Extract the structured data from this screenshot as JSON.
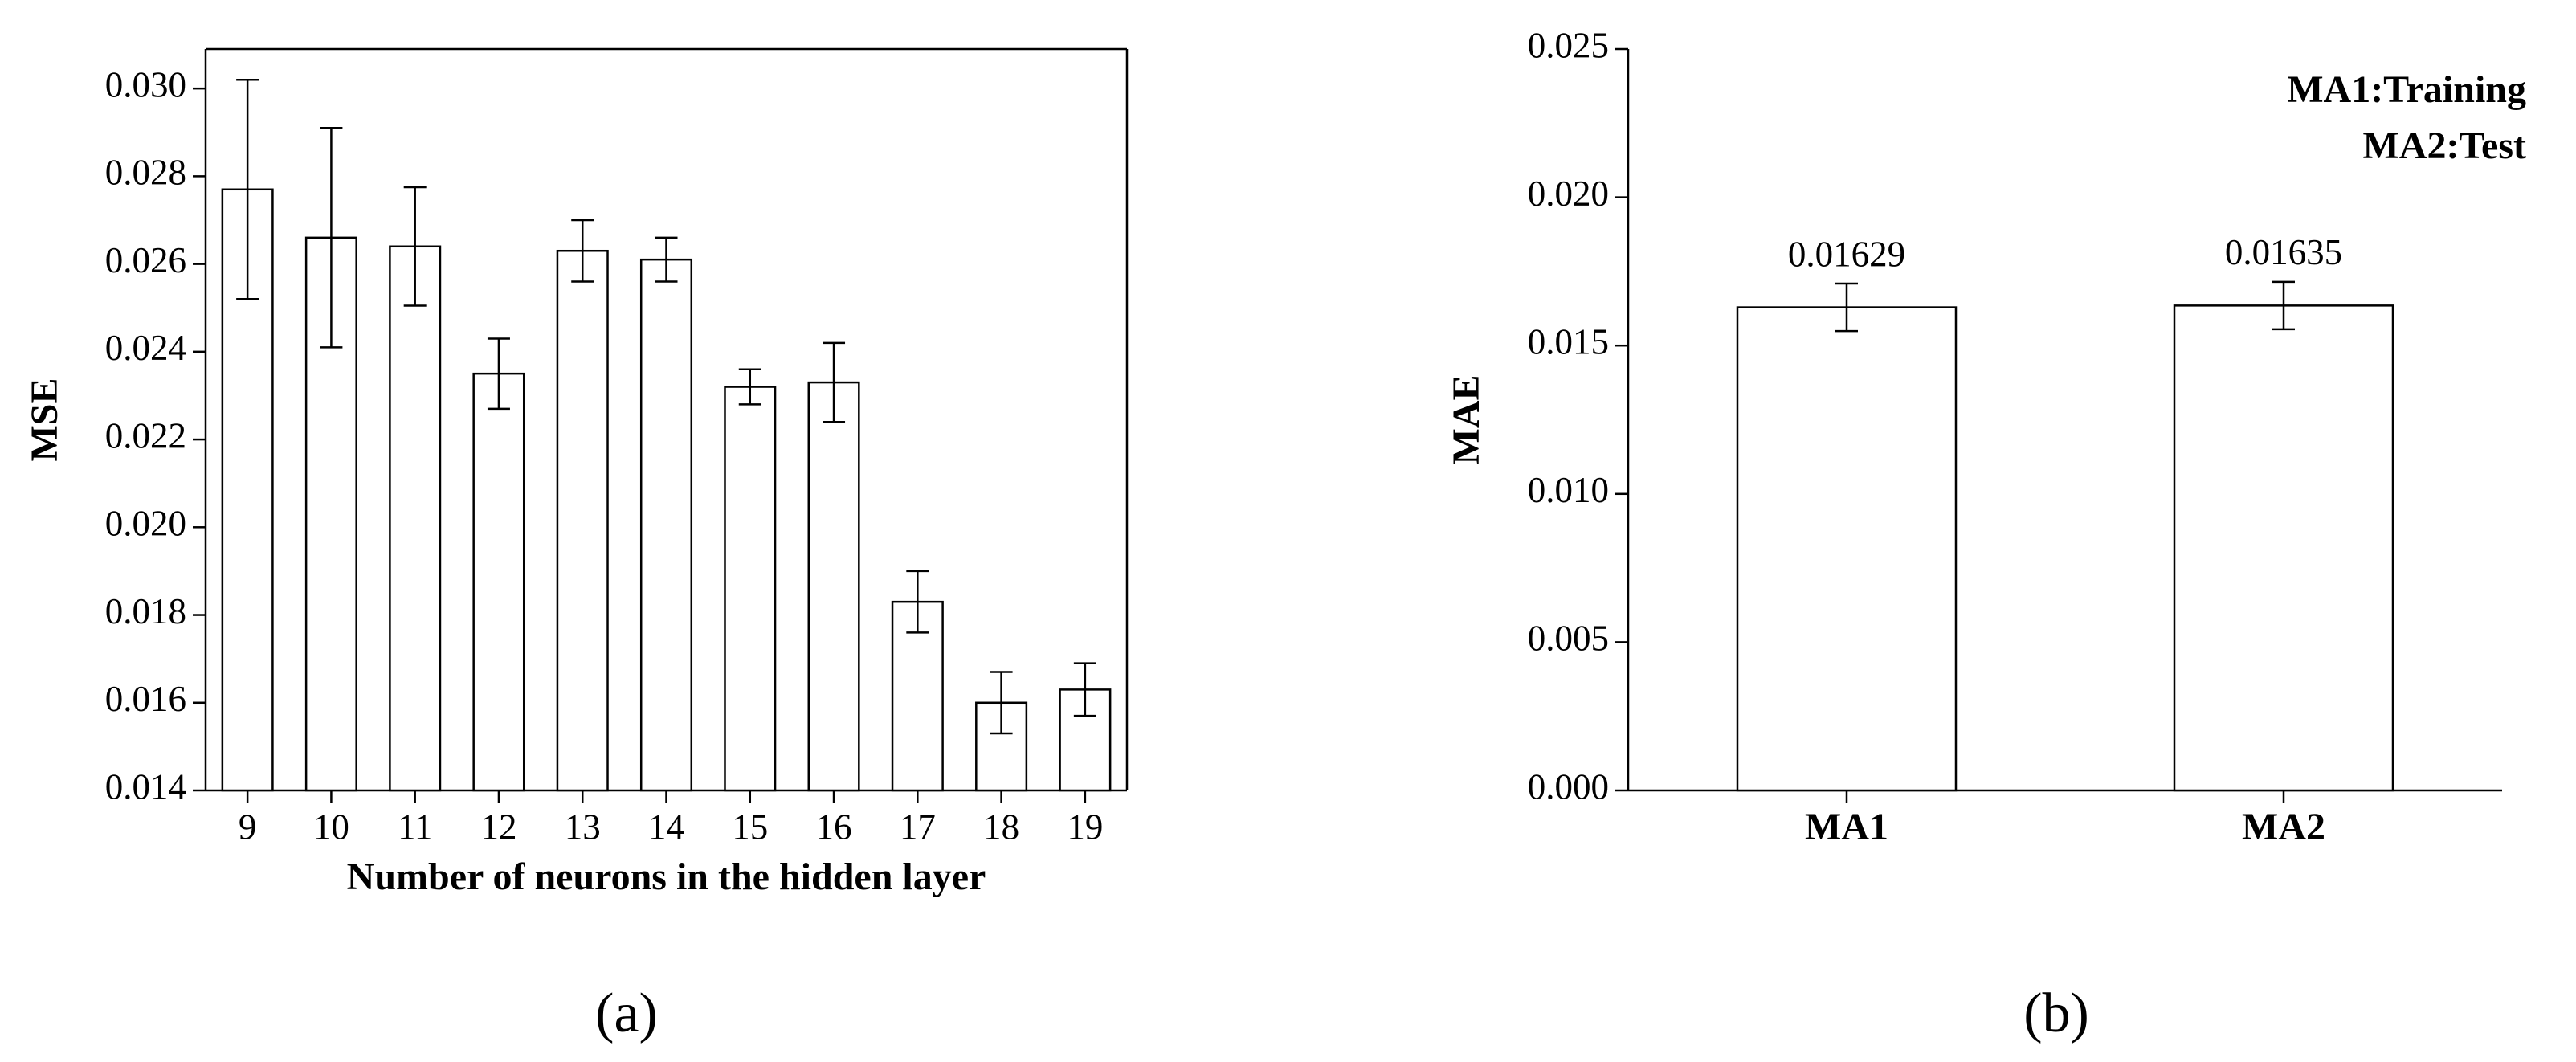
{
  "chart_data": [
    {
      "type": "bar",
      "caption": "(a)",
      "xlabel": "Number of neurons in the hidden layer",
      "ylabel": "MSE",
      "categories": [
        "9",
        "10",
        "11",
        "12",
        "13",
        "14",
        "15",
        "16",
        "17",
        "18",
        "19"
      ],
      "values": [
        0.0277,
        0.0266,
        0.0264,
        0.0235,
        0.0263,
        0.0261,
        0.0232,
        0.0233,
        0.0183,
        0.016,
        0.0163
      ],
      "errors": [
        0.0025,
        0.0025,
        0.00135,
        0.0008,
        0.0007,
        0.0005,
        0.0004,
        0.0009,
        0.0007,
        0.0007,
        0.0006
      ],
      "color": "#ffffff",
      "box": true,
      "ylim": [
        0.014,
        0.0309
      ],
      "yticks": [
        0.014,
        0.016,
        0.018,
        {
          "value": 0.02,
          "label": "0.020"
        },
        0.022,
        0.024,
        0.026,
        0.028,
        {
          "value": 0.03,
          "label": "0.030"
        }
      ]
    },
    {
      "type": "bar",
      "caption": "(b)",
      "ylabel": "MAE",
      "annotations": [
        "MA1:Training",
        "MA2:Test"
      ],
      "categories": [
        "MA1",
        "MA2"
      ],
      "values": [
        0.01629,
        0.01635
      ],
      "errors": [
        0.0008,
        0.0008
      ],
      "color": "#ffffff",
      "box": false,
      "show_values": true,
      "ylim": [
        0,
        0.025
      ],
      "yticks": [
        {
          "value": 0,
          "label": "0.000"
        },
        0.005,
        {
          "value": 0.01,
          "label": "0.010"
        },
        0.015,
        {
          "value": 0.02,
          "label": "0.020"
        },
        0.025
      ]
    }
  ]
}
